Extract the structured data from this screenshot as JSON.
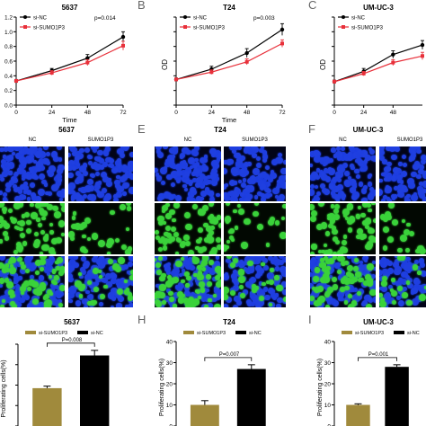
{
  "colors": {
    "black": "#000000",
    "red": "#e8303a",
    "gold": "#a08a3c",
    "nuclei_blue": "#1f3fe0",
    "edu_green": "#3ad23a"
  },
  "panel_letters": [
    "B",
    "C",
    "E",
    "F",
    "H",
    "I"
  ],
  "line_panels": [
    {
      "title": "5637",
      "pvalue": "p=0.014"
    },
    {
      "title": "T24",
      "pvalue": "p=0.003"
    },
    {
      "title": "UM-UC-3",
      "pvalue": ""
    }
  ],
  "micro_panels": [
    {
      "title": "5637",
      "col_labels": [
        "NC",
        "SUMO1P3"
      ]
    },
    {
      "title": "T24",
      "col_labels": [
        "NC",
        "SUMO1P3"
      ]
    },
    {
      "title": "UM-UC-3",
      "col_labels": [
        "NC",
        "SUMO1P3"
      ]
    }
  ],
  "bar_panels": [
    {
      "title": "5637",
      "pvalue": "P=0.008"
    },
    {
      "title": "T24",
      "pvalue": "P=0.007"
    },
    {
      "title": "UM-UC-3",
      "pvalue": "P=0.001"
    }
  ],
  "chart_data": [
    {
      "type": "line",
      "title": "5637",
      "xlabel": "Time",
      "ylabel": "",
      "x": [
        0,
        24,
        48,
        72
      ],
      "xlim": [
        0,
        72
      ],
      "ylim": [
        0.0,
        1.2
      ],
      "xticks": [
        0,
        24,
        48,
        72
      ],
      "yticks": [
        0.0,
        0.2,
        0.4,
        0.6,
        0.8,
        1.0,
        1.2
      ],
      "legend": "top-left",
      "series": [
        {
          "name": "si-NC",
          "color": "#000000",
          "values": [
            0.33,
            0.47,
            0.64,
            0.93
          ],
          "errors": [
            0.02,
            0.03,
            0.05,
            0.07
          ]
        },
        {
          "name": "si-SUMO1P3",
          "color": "#e8303a",
          "values": [
            0.33,
            0.44,
            0.58,
            0.81
          ],
          "errors": [
            0.02,
            0.03,
            0.04,
            0.06
          ]
        }
      ]
    },
    {
      "type": "line",
      "title": "T24",
      "xlabel": "Time",
      "ylabel": "OD",
      "x": [
        0,
        24,
        48,
        72
      ],
      "xlim": [
        0,
        72
      ],
      "ylim": [
        0.0,
        1.2
      ],
      "xticks": [
        0,
        24,
        48,
        72
      ],
      "yticks": [
        0.0,
        0.2,
        0.4,
        0.6,
        0.8,
        1.0,
        1.2
      ],
      "legend": "top-left",
      "series": [
        {
          "name": "si-NC",
          "color": "#000000",
          "values": [
            0.35,
            0.49,
            0.71,
            1.03
          ],
          "errors": [
            0.02,
            0.04,
            0.06,
            0.08
          ]
        },
        {
          "name": "si-SUMO1P3",
          "color": "#e8303a",
          "values": [
            0.35,
            0.45,
            0.59,
            0.84
          ],
          "errors": [
            0.02,
            0.03,
            0.04,
            0.05
          ]
        }
      ]
    },
    {
      "type": "line",
      "title": "UM-UC-3",
      "xlabel": "",
      "ylabel": "OD",
      "x": [
        0,
        24,
        48,
        72
      ],
      "xlim": [
        0,
        72
      ],
      "ylim": [
        0.0,
        1.2
      ],
      "xticks": [
        0,
        24,
        48
      ],
      "yticks": [
        0.0,
        0.2,
        0.4,
        0.6,
        0.8,
        1.0,
        1.2
      ],
      "legend": "top-left",
      "series": [
        {
          "name": "si-NC",
          "color": "#000000",
          "values": [
            0.32,
            0.46,
            0.69,
            0.82
          ],
          "errors": [
            0.02,
            0.04,
            0.05,
            0.06
          ]
        },
        {
          "name": "si-SUMO1P3",
          "color": "#e8303a",
          "values": [
            0.32,
            0.43,
            0.58,
            0.67
          ],
          "errors": [
            0.02,
            0.03,
            0.04,
            0.05
          ]
        }
      ]
    },
    {
      "type": "bar",
      "title": "5637",
      "ylabel": "Proliferating cells(%)",
      "categories": [
        "si-SUMO1P3",
        "si-NC"
      ],
      "ylim": [
        0,
        80
      ],
      "yticks": [
        0,
        20,
        40,
        60,
        80
      ],
      "legend": "top",
      "series": [
        {
          "values": [
            37,
            69
          ],
          "errors": [
            2,
            5
          ],
          "colors": [
            "#a08a3c",
            "#000000"
          ]
        }
      ]
    },
    {
      "type": "bar",
      "title": "T24",
      "ylabel": "Proliferating cells(%)",
      "categories": [
        "si-SUMO1P3",
        "si-NC"
      ],
      "ylim": [
        0,
        40
      ],
      "yticks": [
        0,
        10,
        20,
        30,
        40
      ],
      "legend": "top",
      "series": [
        {
          "values": [
            10,
            27
          ],
          "errors": [
            2,
            2
          ],
          "colors": [
            "#a08a3c",
            "#000000"
          ]
        }
      ]
    },
    {
      "type": "bar",
      "title": "UM-UC-3",
      "ylabel": "Proliferating cells(%)",
      "categories": [
        "si-SUMO1P3",
        "si-NC"
      ],
      "ylim": [
        0,
        40
      ],
      "yticks": [
        0,
        10,
        20,
        30,
        40
      ],
      "legend": "top",
      "series": [
        {
          "values": [
            10,
            28
          ],
          "errors": [
            0.5,
            1
          ],
          "colors": [
            "#a08a3c",
            "#000000"
          ]
        }
      ]
    }
  ]
}
